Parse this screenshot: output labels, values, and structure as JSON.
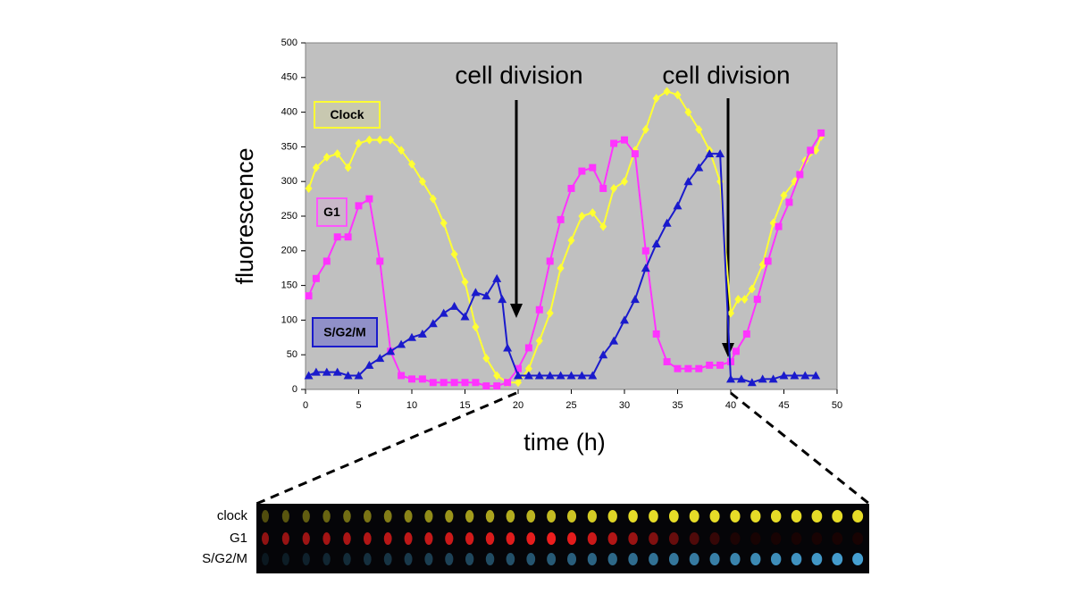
{
  "chart_data": {
    "type": "line",
    "xlabel": "time (h)",
    "ylabel": "fluorescence",
    "xlim": [
      0,
      50
    ],
    "ylim": [
      0,
      500
    ],
    "xticks": [
      0,
      5,
      10,
      15,
      20,
      25,
      30,
      35,
      40,
      45,
      50
    ],
    "yticks": [
      0,
      50,
      100,
      150,
      200,
      250,
      300,
      350,
      400,
      450,
      500
    ],
    "annotations": [
      "cell division",
      "cell division"
    ],
    "series": [
      {
        "name": "Clock",
        "color": "#ffff33",
        "marker": "diamond",
        "x": [
          0.3,
          1,
          2,
          3,
          4,
          5,
          6,
          7,
          8,
          9,
          10,
          11,
          12,
          13,
          14,
          15,
          16,
          17,
          18,
          19,
          20,
          21,
          22,
          23,
          24,
          25,
          26,
          27,
          28,
          29,
          30,
          31,
          32,
          33,
          34,
          35,
          36,
          37,
          38,
          39,
          40,
          40.7,
          41.3,
          42,
          43,
          44,
          45,
          46,
          47,
          48,
          48.5
        ],
        "values": [
          290,
          320,
          335,
          340,
          320,
          355,
          360,
          360,
          360,
          345,
          325,
          300,
          275,
          240,
          195,
          155,
          90,
          45,
          20,
          10,
          10,
          30,
          70,
          110,
          175,
          215,
          250,
          255,
          235,
          290,
          300,
          345,
          375,
          420,
          430,
          425,
          400,
          375,
          345,
          300,
          110,
          130,
          130,
          145,
          180,
          240,
          280,
          300,
          330,
          345,
          365
        ]
      },
      {
        "name": "G1",
        "color": "#ff33ff",
        "marker": "square",
        "x": [
          0.3,
          1,
          2,
          3,
          4,
          5,
          6,
          7,
          8,
          9,
          10,
          11,
          12,
          13,
          14,
          15,
          16,
          17,
          18,
          19,
          20,
          21,
          22,
          23,
          24,
          25,
          26,
          27,
          28,
          29,
          30,
          31,
          32,
          33,
          34,
          35,
          36,
          37,
          38,
          39,
          40,
          40.5,
          41.5,
          42.5,
          43.5,
          44.5,
          45.5,
          46.5,
          47.5,
          48.5
        ],
        "values": [
          135,
          160,
          185,
          220,
          220,
          265,
          275,
          185,
          55,
          20,
          15,
          15,
          10,
          10,
          10,
          10,
          10,
          5,
          5,
          10,
          30,
          60,
          115,
          185,
          245,
          290,
          315,
          320,
          290,
          355,
          360,
          340,
          200,
          80,
          40,
          30,
          30,
          30,
          35,
          35,
          40,
          55,
          80,
          130,
          185,
          235,
          270,
          310,
          345,
          370
        ]
      },
      {
        "name": "S/G2/M",
        "color": "#1a1acc",
        "marker": "triangle",
        "x": [
          0.3,
          1,
          2,
          3,
          4,
          5,
          6,
          7,
          8,
          9,
          10,
          11,
          12,
          13,
          14,
          15,
          16,
          17,
          18,
          18.5,
          19,
          20,
          21,
          22,
          23,
          24,
          25,
          26,
          27,
          28,
          29,
          30,
          31,
          32,
          33,
          34,
          35,
          36,
          37,
          38,
          39,
          40,
          41,
          42,
          43,
          44,
          45,
          46,
          47,
          48
        ],
        "values": [
          20,
          25,
          25,
          25,
          20,
          20,
          35,
          45,
          55,
          65,
          75,
          80,
          95,
          110,
          120,
          105,
          140,
          135,
          160,
          130,
          60,
          20,
          20,
          20,
          20,
          20,
          20,
          20,
          20,
          50,
          70,
          100,
          130,
          175,
          210,
          240,
          265,
          300,
          320,
          340,
          340,
          15,
          15,
          10,
          15,
          15,
          20,
          20,
          20,
          20
        ]
      }
    ],
    "strip_labels": [
      "clock",
      "G1",
      "S/G2/M"
    ]
  }
}
